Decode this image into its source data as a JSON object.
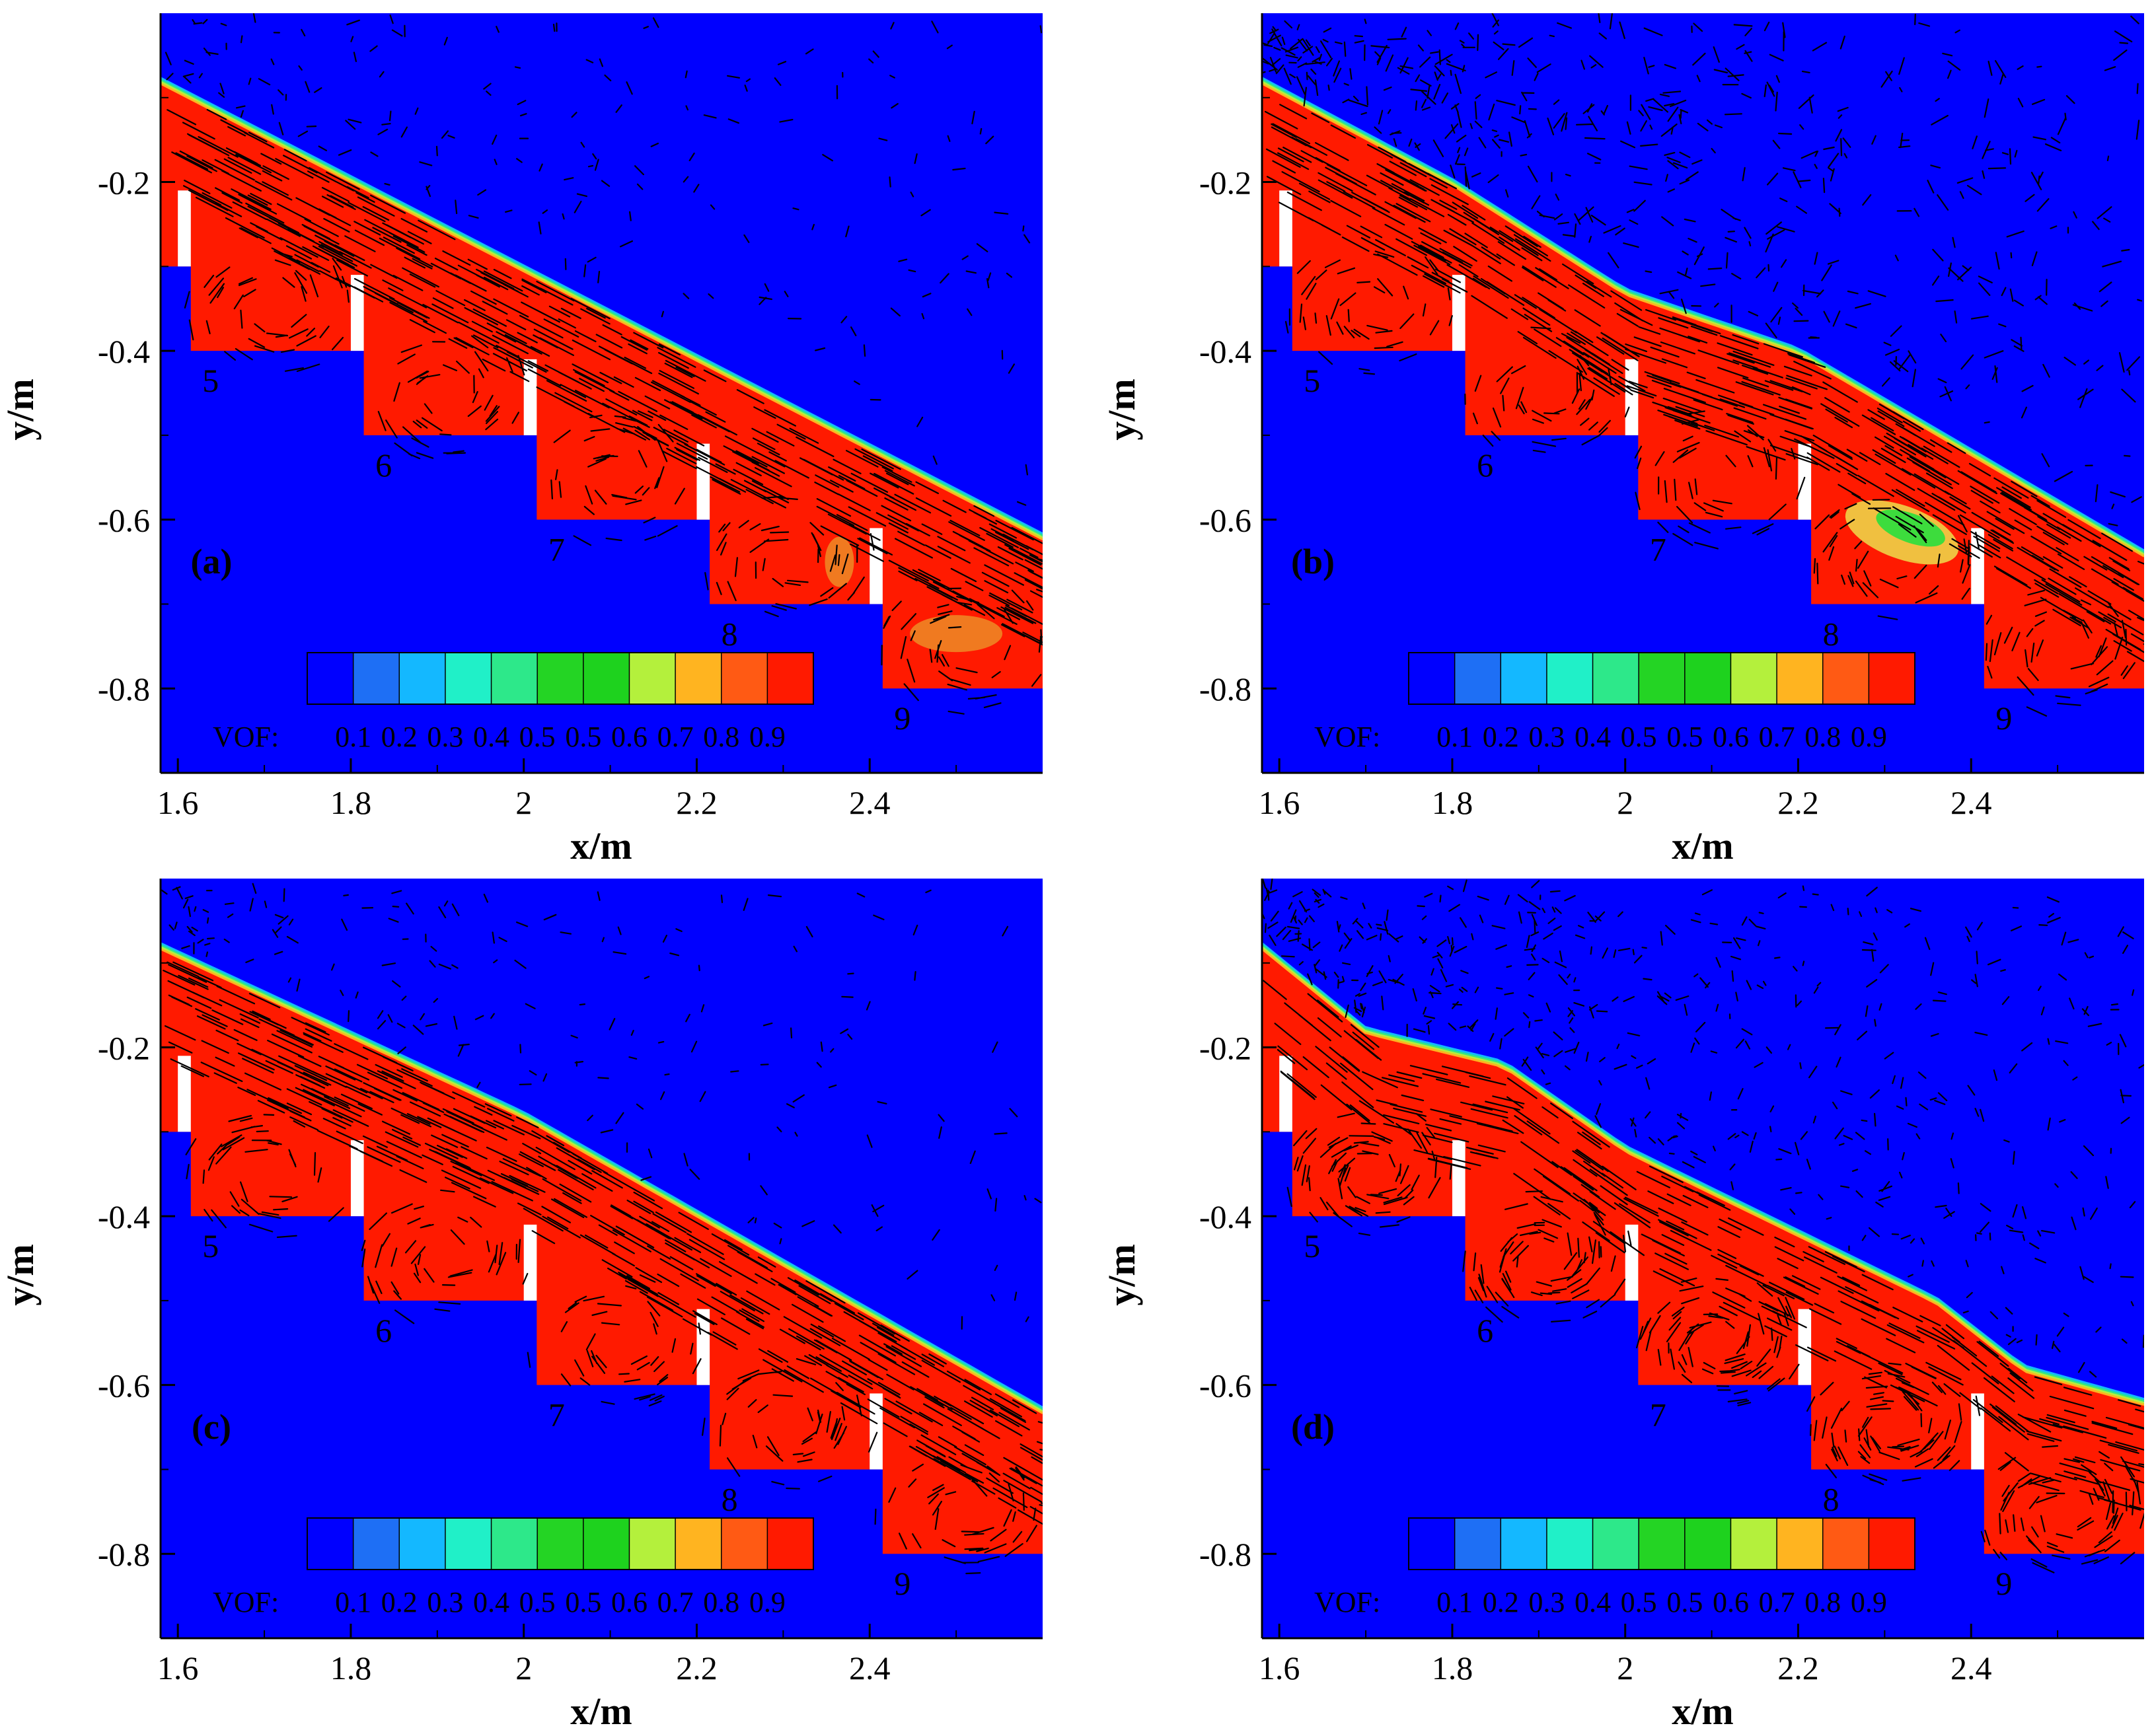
{
  "figure": {
    "colors": {
      "water": "#ff1a00",
      "air": "#0000ff",
      "background": "#ffffff",
      "axis": "#000000",
      "vector": "#000000",
      "bubble_a": "#f07a20",
      "bubble_b_outer": "#f0c040",
      "bubble_b_inner": "#3ddc3d"
    },
    "legend": {
      "label": "VOF:",
      "colors": [
        "#0000ff",
        "#1e6ff5",
        "#14b8ff",
        "#20f0c8",
        "#2de88a",
        "#24d424",
        "#1ed21e",
        "#b4f03c",
        "#ffb420",
        "#ff5a14",
        "#ff1a00"
      ],
      "tick_labels": [
        "0.1",
        "0.2",
        "0.3",
        "0.4",
        "0.5",
        "0.5",
        "0.6",
        "0.7",
        "0.8",
        "0.9"
      ]
    }
  },
  "chart_data": [
    {
      "type": "contour",
      "panel_label": "(a)",
      "title": "",
      "xlabel": "x/m",
      "ylabel": "y/m",
      "xlim": [
        1.58,
        2.6
      ],
      "ylim": [
        -0.9,
        -0.0
      ],
      "xticks": [
        {
          "v": 1.6,
          "label": "1.6"
        },
        {
          "v": 1.8,
          "label": "1.8"
        },
        {
          "v": 2.0,
          "label": "2"
        },
        {
          "v": 2.2,
          "label": "2.2"
        },
        {
          "v": 2.4,
          "label": "2.4"
        }
      ],
      "yticks": [
        {
          "v": -0.2,
          "label": "-0.2"
        },
        {
          "v": -0.4,
          "label": "-0.4"
        },
        {
          "v": -0.6,
          "label": "-0.6"
        },
        {
          "v": -0.8,
          "label": "-0.8"
        }
      ],
      "steps": [
        {
          "label": "5",
          "x0": 1.615,
          "x1": 1.8,
          "y_bottom": -0.4
        },
        {
          "label": "6",
          "x0": 1.815,
          "x1": 2.0,
          "y_bottom": -0.5
        },
        {
          "label": "7",
          "x0": 2.015,
          "x1": 2.2,
          "y_bottom": -0.6
        },
        {
          "label": "8",
          "x0": 2.215,
          "x1": 2.4,
          "y_bottom": -0.7
        },
        {
          "label": "9",
          "x0": 2.415,
          "x1": 2.6,
          "y_bottom": -0.8
        }
      ],
      "free_surface": [
        [
          1.58,
          -0.08
        ],
        [
          2.6,
          -0.62
        ]
      ],
      "flow_regime_vectors": "skimming"
    },
    {
      "type": "contour",
      "panel_label": "(b)",
      "title": "",
      "xlabel": "x/m",
      "ylabel": "y/m",
      "xlim": [
        1.58,
        2.6
      ],
      "ylim": [
        -0.9,
        -0.0
      ],
      "xticks": [
        {
          "v": 1.6,
          "label": "1.6"
        },
        {
          "v": 1.8,
          "label": "1.8"
        },
        {
          "v": 2.0,
          "label": "2"
        },
        {
          "v": 2.2,
          "label": "2.2"
        },
        {
          "v": 2.4,
          "label": "2.4"
        }
      ],
      "yticks": [
        {
          "v": -0.2,
          "label": "-0.2"
        },
        {
          "v": -0.4,
          "label": "-0.4"
        },
        {
          "v": -0.6,
          "label": "-0.6"
        },
        {
          "v": -0.8,
          "label": "-0.8"
        }
      ],
      "steps": [
        {
          "label": "5",
          "x0": 1.615,
          "x1": 1.8,
          "y_bottom": -0.4
        },
        {
          "label": "6",
          "x0": 1.815,
          "x1": 2.0,
          "y_bottom": -0.5
        },
        {
          "label": "7",
          "x0": 2.015,
          "x1": 2.2,
          "y_bottom": -0.6
        },
        {
          "label": "8",
          "x0": 2.215,
          "x1": 2.4,
          "y_bottom": -0.7
        },
        {
          "label": "9",
          "x0": 2.415,
          "x1": 2.6,
          "y_bottom": -0.8
        }
      ],
      "free_surface": [
        [
          1.58,
          -0.08
        ],
        [
          1.8,
          -0.2
        ],
        [
          2.0,
          -0.33
        ],
        [
          2.2,
          -0.4
        ],
        [
          2.4,
          -0.52
        ],
        [
          2.6,
          -0.64
        ]
      ],
      "flow_regime_vectors": "transition"
    },
    {
      "type": "contour",
      "panel_label": "(c)",
      "title": "",
      "xlabel": "x/m",
      "ylabel": "y/m",
      "xlim": [
        1.58,
        2.6
      ],
      "ylim": [
        -0.9,
        -0.0
      ],
      "xticks": [
        {
          "v": 1.6,
          "label": "1.6"
        },
        {
          "v": 1.8,
          "label": "1.8"
        },
        {
          "v": 2.0,
          "label": "2"
        },
        {
          "v": 2.2,
          "label": "2.2"
        },
        {
          "v": 2.4,
          "label": "2.4"
        }
      ],
      "yticks": [
        {
          "v": -0.2,
          "label": "-0.2"
        },
        {
          "v": -0.4,
          "label": "-0.4"
        },
        {
          "v": -0.6,
          "label": "-0.6"
        },
        {
          "v": -0.8,
          "label": "-0.8"
        }
      ],
      "steps": [
        {
          "label": "5",
          "x0": 1.615,
          "x1": 1.8,
          "y_bottom": -0.4
        },
        {
          "label": "6",
          "x0": 1.815,
          "x1": 2.0,
          "y_bottom": -0.5
        },
        {
          "label": "7",
          "x0": 2.015,
          "x1": 2.2,
          "y_bottom": -0.6
        },
        {
          "label": "8",
          "x0": 2.215,
          "x1": 2.4,
          "y_bottom": -0.7
        },
        {
          "label": "9",
          "x0": 2.415,
          "x1": 2.6,
          "y_bottom": -0.8
        }
      ],
      "free_surface": [
        [
          1.58,
          -0.08
        ],
        [
          2.0,
          -0.28
        ],
        [
          2.6,
          -0.63
        ]
      ],
      "flow_regime_vectors": "skimming"
    },
    {
      "type": "contour",
      "panel_label": "(d)",
      "title": "",
      "xlabel": "x/m",
      "ylabel": "y/m",
      "xlim": [
        1.58,
        2.6
      ],
      "ylim": [
        -0.9,
        -0.0
      ],
      "xticks": [
        {
          "v": 1.6,
          "label": "1.6"
        },
        {
          "v": 1.8,
          "label": "1.8"
        },
        {
          "v": 2.0,
          "label": "2"
        },
        {
          "v": 2.2,
          "label": "2.2"
        },
        {
          "v": 2.4,
          "label": "2.4"
        }
      ],
      "yticks": [
        {
          "v": -0.2,
          "label": "-0.2"
        },
        {
          "v": -0.4,
          "label": "-0.4"
        },
        {
          "v": -0.6,
          "label": "-0.6"
        },
        {
          "v": -0.8,
          "label": "-0.8"
        }
      ],
      "steps": [
        {
          "label": "5",
          "x0": 1.615,
          "x1": 1.8,
          "y_bottom": -0.4
        },
        {
          "label": "6",
          "x0": 1.815,
          "x1": 2.0,
          "y_bottom": -0.5
        },
        {
          "label": "7",
          "x0": 2.015,
          "x1": 2.2,
          "y_bottom": -0.6
        },
        {
          "label": "8",
          "x0": 2.215,
          "x1": 2.4,
          "y_bottom": -0.7
        },
        {
          "label": "9",
          "x0": 2.415,
          "x1": 2.6,
          "y_bottom": -0.8
        }
      ],
      "free_surface": [
        [
          1.58,
          -0.08
        ],
        [
          1.7,
          -0.18
        ],
        [
          1.86,
          -0.22
        ],
        [
          2.0,
          -0.32
        ],
        [
          2.2,
          -0.42
        ],
        [
          2.36,
          -0.5
        ],
        [
          2.46,
          -0.58
        ],
        [
          2.6,
          -0.62
        ]
      ],
      "flow_regime_vectors": "nappe"
    }
  ]
}
